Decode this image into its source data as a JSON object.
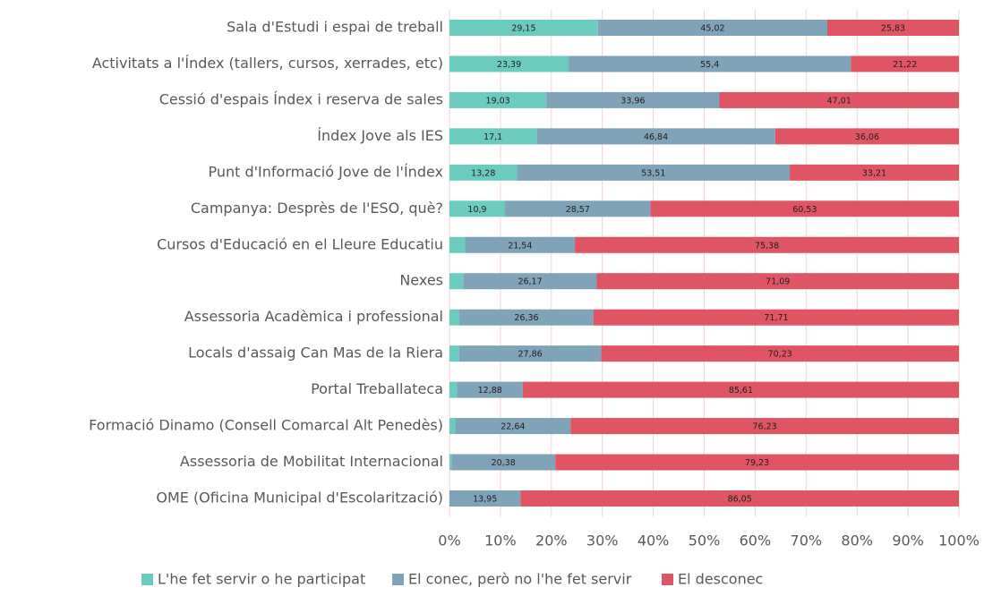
{
  "chart_data": {
    "type": "stacked_barh",
    "categories": [
      "Sala d'Estudi i espai de treball",
      "Activitats a l'Índex (tallers, cursos, xerrades, etc)",
      "Cessió d'espais Índex i reserva de sales",
      "Índex Jove als IES",
      "Punt d'Informació Jove de l'Índex",
      "Campanya: Desprès de l'ESO, què?",
      "Cursos d'Educació en el Lleure Educatiu",
      "Nexes",
      "Assessoria Acadèmica i professional",
      "Locals d'assaig Can Mas de la Riera",
      "Portal Treballateca",
      "Formació Dinamo (Consell Comarcal Alt Penedès)",
      "Assessoria de Mobilitat Internacional",
      "OME (Oficina Municipal d'Escolarització)"
    ],
    "series": [
      {
        "name": "L'he fet servir o he participat",
        "color": "#6ccbbf",
        "values": [
          29.15,
          23.39,
          19.03,
          17.1,
          13.28,
          10.9,
          3.08,
          2.74,
          1.93,
          1.91,
          1.51,
          1.13,
          0.39,
          0
        ],
        "value_labels": [
          "29,15",
          "23,39",
          "19,03",
          "17,1",
          "13,28",
          "10,9",
          null,
          null,
          null,
          null,
          null,
          null,
          null,
          null
        ]
      },
      {
        "name": "El conec, però no l'he fet servir",
        "color": "#7fa3b8",
        "values": [
          45.02,
          55.4,
          33.96,
          46.84,
          53.51,
          28.57,
          21.54,
          26.17,
          26.36,
          27.86,
          12.88,
          22.64,
          20.38,
          13.95
        ],
        "value_labels": [
          "45,02",
          "55,4",
          "33,96",
          "46,84",
          "53,51",
          "28,57",
          "21,54",
          "26,17",
          "26,36",
          "27,86",
          "12,88",
          "22,64",
          "20,38",
          "13,95"
        ]
      },
      {
        "name": "El desconec",
        "color": "#e05563",
        "values": [
          25.83,
          21.22,
          47.01,
          36.06,
          33.21,
          60.53,
          75.38,
          71.09,
          71.71,
          70.23,
          85.61,
          76.23,
          79.23,
          86.05
        ],
        "value_labels": [
          "25,83",
          "21,22",
          "47,01",
          "36,06",
          "33,21",
          "60,53",
          "75,38",
          "71,09",
          "71,71",
          "70,23",
          "85,61",
          "76,23",
          "79,23",
          "86,05"
        ]
      }
    ],
    "xlim": [
      0,
      100
    ],
    "xticks": [
      {
        "value": 0,
        "label": "0%"
      },
      {
        "value": 10,
        "label": "10%"
      },
      {
        "value": 20,
        "label": "20%"
      },
      {
        "value": 30,
        "label": "30%"
      },
      {
        "value": 40,
        "label": "40%"
      },
      {
        "value": 50,
        "label": "50%"
      },
      {
        "value": 60,
        "label": "60%"
      },
      {
        "value": 70,
        "label": "70%"
      },
      {
        "value": 80,
        "label": "80%"
      },
      {
        "value": 90,
        "label": "90%"
      },
      {
        "value": 100,
        "label": "100%"
      }
    ],
    "grid": true,
    "legend": "bottom"
  }
}
